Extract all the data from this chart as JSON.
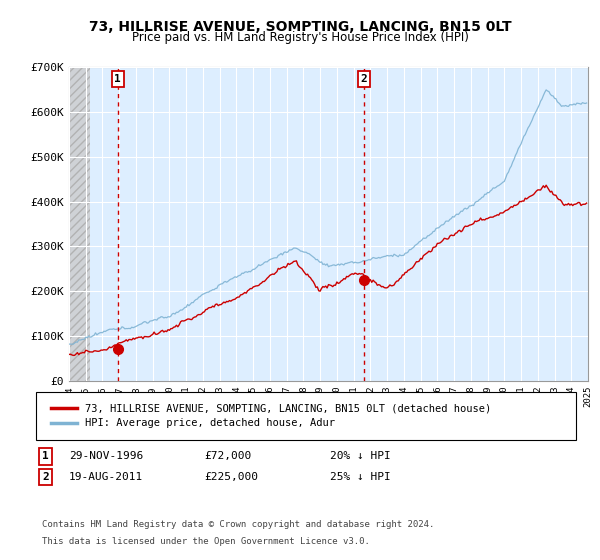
{
  "title": "73, HILLRISE AVENUE, SOMPTING, LANCING, BN15 0LT",
  "subtitle": "Price paid vs. HM Land Registry's House Price Index (HPI)",
  "xmin": 1994.0,
  "xmax": 2025.0,
  "ymin": 0,
  "ymax": 700000,
  "yticks": [
    0,
    100000,
    200000,
    300000,
    400000,
    500000,
    600000,
    700000
  ],
  "ytick_labels": [
    "£0",
    "£100K",
    "£200K",
    "£300K",
    "£400K",
    "£500K",
    "£600K",
    "£700K"
  ],
  "sale1_x": 1996.91,
  "sale1_y": 72000,
  "sale2_x": 2011.63,
  "sale2_y": 225000,
  "legend_label_red": "73, HILLRISE AVENUE, SOMPTING, LANCING, BN15 0LT (detached house)",
  "legend_label_blue": "HPI: Average price, detached house, Adur",
  "ann1_label": "1",
  "ann1_text": "29-NOV-1996",
  "ann1_price": "£72,000",
  "ann1_hpi": "20% ↓ HPI",
  "ann2_label": "2",
  "ann2_text": "19-AUG-2011",
  "ann2_price": "£225,000",
  "ann2_hpi": "25% ↓ HPI",
  "footer_line1": "Contains HM Land Registry data © Crown copyright and database right 2024.",
  "footer_line2": "This data is licensed under the Open Government Licence v3.0.",
  "plot_bg_color": "#ddeeff",
  "hatch_end": 1995.3,
  "red_color": "#cc0000",
  "blue_color": "#7fb3d3",
  "grid_color": "#ffffff",
  "title_fontsize": 10,
  "subtitle_fontsize": 9
}
